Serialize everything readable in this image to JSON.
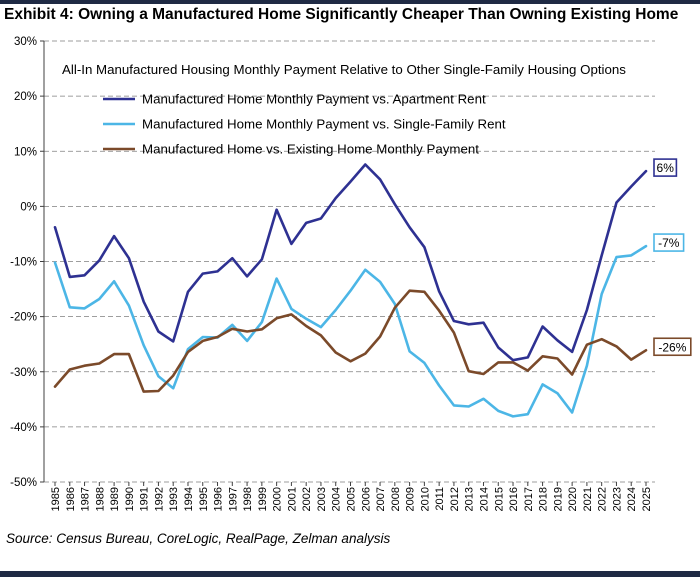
{
  "exhibit_title": "Exhibit 4: Owning a Manufactured Home Significantly Cheaper Than Owning Existing Home",
  "source": "Source: Census Bureau, CoreLogic, RealPage, Zelman analysis",
  "colors": {
    "rule": "#1f2a44",
    "apartment": "#2e3192",
    "single_family": "#4cb6e6",
    "existing_home": "#7b4a2a",
    "grid": "#7f7f7f",
    "axis": "#404040"
  },
  "chart_data": {
    "type": "line",
    "title": "All-In Manufactured Housing Monthly Payment Relative to Other Single-Family Housing Options",
    "xlabel": "",
    "ylabel": "",
    "ylim": [
      -50,
      30
    ],
    "yticks": [
      -50,
      -40,
      -30,
      -20,
      -10,
      0,
      10,
      20,
      30
    ],
    "ytick_labels": [
      "-50%",
      "-40%",
      "-30%",
      "-20%",
      "-10%",
      "0%",
      "10%",
      "20%",
      "30%"
    ],
    "grid": true,
    "legend_position": "top-left",
    "x": [
      "1985",
      "1986",
      "1987",
      "1988",
      "1989",
      "1990",
      "1991",
      "1992",
      "1993",
      "1994",
      "1995",
      "1996",
      "1997",
      "1998",
      "1999",
      "2000",
      "2001",
      "2002",
      "2003",
      "2004",
      "2005",
      "2006",
      "2007",
      "2008",
      "2009",
      "2010",
      "2011",
      "2012",
      "2013",
      "2014",
      "2015",
      "2016",
      "2017",
      "2018",
      "2019",
      "2020",
      "2021",
      "2022",
      "2023",
      "2024",
      "2025"
    ],
    "series": [
      {
        "name": "Manufactured Home Monthly Payment vs. Apartment Rent",
        "color_key": "apartment",
        "end_label": "6%",
        "values": [
          -3.8,
          -12.8,
          -12.5,
          -9.8,
          -5.4,
          -9.4,
          -17.3,
          -22.7,
          -24.5,
          -15.5,
          -12.2,
          -11.8,
          -9.4,
          -12.7,
          -9.6,
          -0.6,
          -6.8,
          -3.0,
          -2.2,
          1.5,
          4.5,
          7.6,
          4.9,
          0.4,
          -3.8,
          -7.4,
          -15.4,
          -20.8,
          -21.4,
          -21.1,
          -25.6,
          -27.9,
          -27.4,
          -21.8,
          -24.3,
          -26.4,
          -18.8,
          -8.9,
          0.7,
          3.6,
          6.4
        ]
      },
      {
        "name": "Manufactured Home Monthly Payment vs. Single-Family Rent",
        "color_key": "single_family",
        "end_label": "-7%",
        "values": [
          -10.2,
          -18.3,
          -18.5,
          -16.8,
          -13.6,
          -18.0,
          -25.2,
          -30.8,
          -33.0,
          -25.9,
          -23.7,
          -23.8,
          -21.5,
          -24.4,
          -21.0,
          -13.1,
          -18.6,
          -20.4,
          -21.9,
          -18.8,
          -15.3,
          -11.5,
          -13.7,
          -17.7,
          -26.3,
          -28.4,
          -32.5,
          -36.1,
          -36.3,
          -34.9,
          -37.1,
          -38.1,
          -37.7,
          -32.3,
          -33.9,
          -37.4,
          -28.9,
          -15.9,
          -9.2,
          -8.9,
          -7.2
        ]
      },
      {
        "name": "Manufactured Home vs. Existing Home Monthly Payment",
        "color_key": "existing_home",
        "end_label": "-26%",
        "values": [
          -32.7,
          -29.6,
          -28.9,
          -28.5,
          -26.8,
          -26.8,
          -33.6,
          -33.5,
          -30.7,
          -26.4,
          -24.4,
          -23.7,
          -22.2,
          -22.7,
          -22.3,
          -20.3,
          -19.6,
          -21.7,
          -23.4,
          -26.5,
          -28.1,
          -26.7,
          -23.6,
          -18.4,
          -15.3,
          -15.5,
          -18.9,
          -22.9,
          -29.9,
          -30.4,
          -28.3,
          -28.3,
          -29.8,
          -27.2,
          -27.6,
          -30.5,
          -25.1,
          -24.1,
          -25.4,
          -27.8,
          -26.1
        ]
      }
    ]
  }
}
